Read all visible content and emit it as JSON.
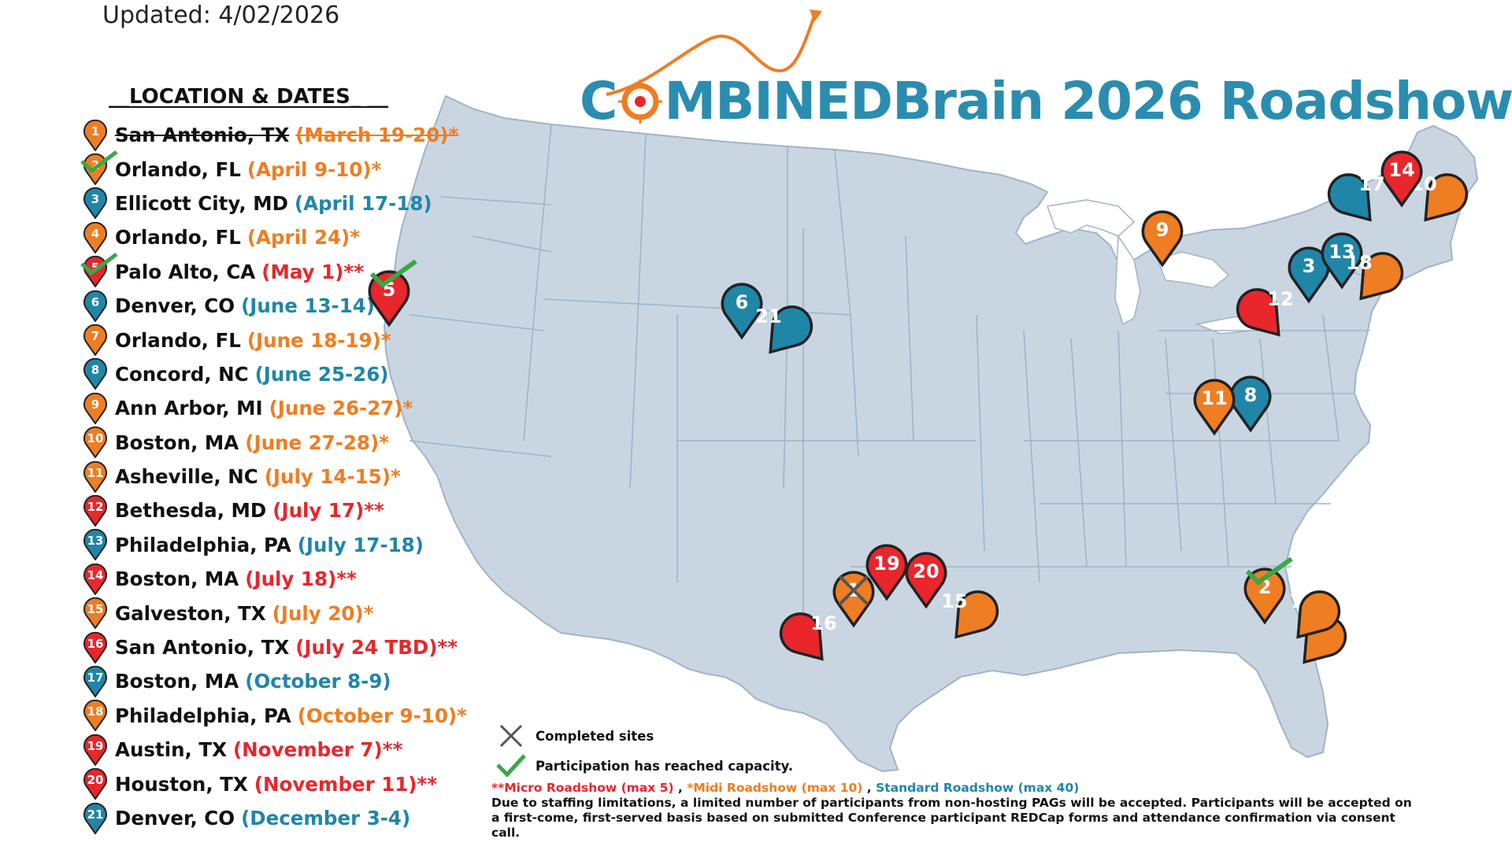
{
  "updated": "Updated: 4/02/2026",
  "heading": "__LOCATION & DATES_ __",
  "title": {
    "prefix": "C",
    "suffix": "MBINEDBrain 2026 Roadshow"
  },
  "colors": {
    "red": "#e8262c",
    "orange": "#ef7d22",
    "blue": "#1f86a8",
    "check": "#3aa845",
    "map": "#c9d6e2"
  },
  "locations": [
    {
      "num": "1",
      "city": "San Antonio, TX",
      "dates": "(March 19-20)*",
      "color": "orange",
      "status": "completed"
    },
    {
      "num": "2",
      "city": "Orlando, FL",
      "dates": "(April 9-10)*",
      "color": "orange",
      "status": "capacity"
    },
    {
      "num": "3",
      "city": "Ellicott City, MD",
      "dates": "(April 17-18)",
      "color": "blue",
      "status": ""
    },
    {
      "num": "4",
      "city": "Orlando, FL",
      "dates": "(April 24)*",
      "color": "orange",
      "status": ""
    },
    {
      "num": "5",
      "city": "Palo Alto, CA",
      "dates": "(May 1)**",
      "color": "red",
      "status": "capacity"
    },
    {
      "num": "6",
      "city": "Denver, CO",
      "dates": "(June 13-14)",
      "color": "blue",
      "status": ""
    },
    {
      "num": "7",
      "city": "Orlando, FL",
      "dates": "(June 18-19)*",
      "color": "orange",
      "status": ""
    },
    {
      "num": "8",
      "city": "Concord, NC",
      "dates": "(June 25-26)",
      "color": "blue",
      "status": ""
    },
    {
      "num": "9",
      "city": "Ann Arbor, MI",
      "dates": "(June 26-27)*",
      "color": "orange",
      "status": ""
    },
    {
      "num": "10",
      "city": "Boston, MA",
      "dates": "(June 27-28)*",
      "color": "orange",
      "status": ""
    },
    {
      "num": "11",
      "city": "Asheville, NC",
      "dates": "(July 14-15)*",
      "color": "orange",
      "status": ""
    },
    {
      "num": "12",
      "city": "Bethesda, MD",
      "dates": "(July 17)**",
      "color": "red",
      "status": ""
    },
    {
      "num": "13",
      "city": "Philadelphia, PA",
      "dates": "(July 17-18)",
      "color": "blue",
      "status": ""
    },
    {
      "num": "14",
      "city": "Boston, MA",
      "dates": "(July 18)**",
      "color": "red",
      "status": ""
    },
    {
      "num": "15",
      "city": "Galveston, TX",
      "dates": "(July 20)*",
      "color": "orange",
      "status": ""
    },
    {
      "num": "16",
      "city": "San Antonio, TX",
      "dates": "(July 24 TBD)**",
      "color": "red",
      "status": ""
    },
    {
      "num": "17",
      "city": "Boston, MA",
      "dates": "(October 8-9)",
      "color": "blue",
      "status": ""
    },
    {
      "num": "18",
      "city": "Philadelphia, PA",
      "dates": "(October 9-10)*",
      "color": "orange",
      "status": ""
    },
    {
      "num": "19",
      "city": "Austin, TX",
      "dates": "(November 7)**",
      "color": "red",
      "status": ""
    },
    {
      "num": "20",
      "city": "Houston, TX",
      "dates": "(November 11)**",
      "color": "red",
      "status": ""
    },
    {
      "num": "21",
      "city": "Denver, CO",
      "dates": "(December 3-4)",
      "color": "blue",
      "status": ""
    }
  ],
  "legend": {
    "completed": "Completed sites",
    "capacity": "Participation has reached capacity."
  },
  "footnote": {
    "micro": "**Micro Roadshow (max 5)",
    "sep1": " , ",
    "midi": "*Midi Roadshow (max 10)",
    "sep2": " , ",
    "standard": "Standard Roadshow (max 40)",
    "note": "Due to staffing limitations, a limited number of participants from non-hosting PAGs will be accepted. Participants will be accepted on a first-come, first-served basis based on submitted Conference participant REDCap forms and attendance confirmation via consent call."
  }
}
